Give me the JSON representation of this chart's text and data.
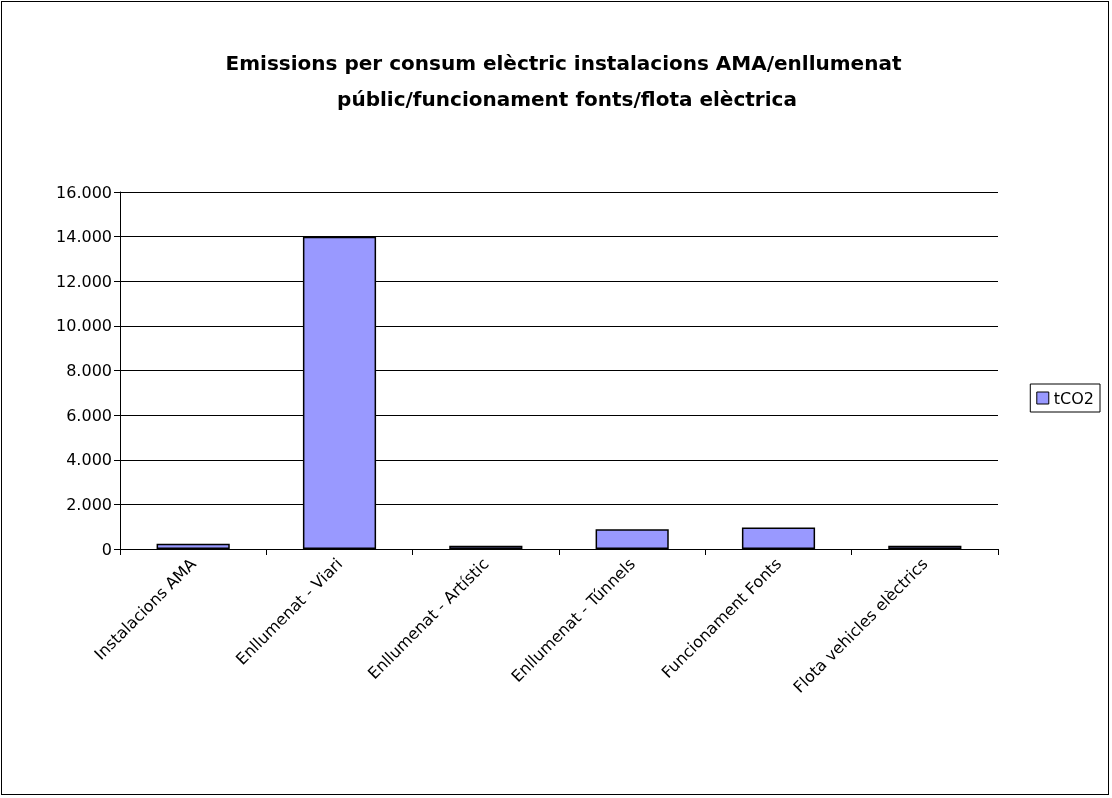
{
  "chart_data": {
    "type": "bar",
    "title": "Emissions per consum elèctric instalacions AMA/enllumenat públic/funcionament fonts/flota elèctrica",
    "categories": [
      "Instalacions AMA",
      "Enllumenat - Viari",
      "Enllumenat - Artístic",
      "Enllumenat - Túnnels",
      "Funcionament Fonts",
      "Flota vehicles elèctrics"
    ],
    "series": [
      {
        "name": "tCO2",
        "color": "#9999ff",
        "values": [
          230,
          14000,
          150,
          880,
          960,
          150
        ]
      }
    ],
    "ylim": [
      0,
      16000
    ],
    "yticks": [
      0,
      {
        "value": 2000,
        "label": "2.000"
      },
      {
        "value": 4000,
        "label": "4.000"
      },
      {
        "value": 6000,
        "label": "6.000"
      },
      {
        "value": 8000,
        "label": "8.000"
      },
      {
        "value": 10000,
        "label": "10.000"
      },
      {
        "value": 12000,
        "label": "12.000"
      },
      {
        "value": 14000,
        "label": "14.000"
      },
      {
        "value": 16000,
        "label": "16.000"
      }
    ],
    "grid": "y",
    "legend": "right"
  }
}
